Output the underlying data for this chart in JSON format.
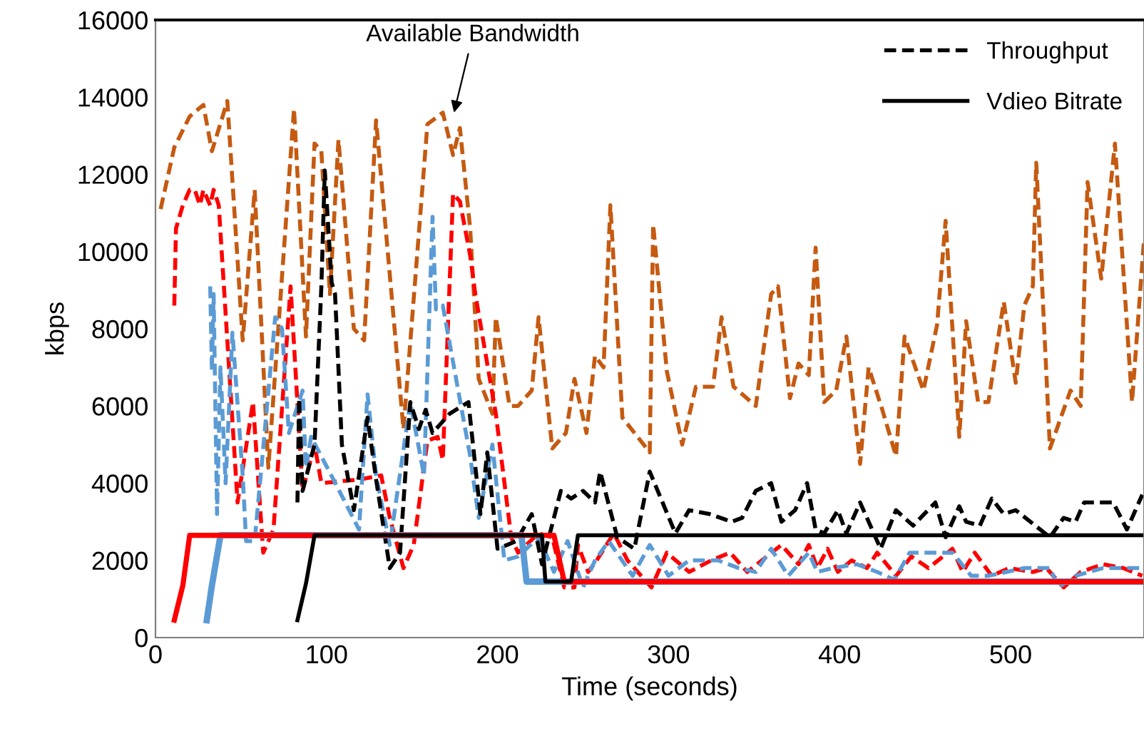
{
  "chart_data": {
    "type": "line",
    "xlabel": "Time (seconds)",
    "ylabel": "kbps",
    "xlim": [
      0,
      578
    ],
    "xticks": [
      0,
      100,
      200,
      300,
      400,
      500
    ],
    "ylim": [
      0,
      16000
    ],
    "yticks": [
      0,
      2000,
      4000,
      6000,
      8000,
      10000,
      12000,
      14000,
      16000
    ],
    "grid": false,
    "legend": "top right",
    "marker": "none",
    "annotations": [
      {
        "text": "Available Bandwidth",
        "x": 174,
        "y": 13500
      }
    ],
    "series": [
      {
        "color": "#c55a11",
        "line_style": "dashed",
        "x": [
          3,
          11,
          20,
          28,
          33,
          42,
          51,
          58,
          66,
          81,
          88,
          93,
          97,
          102,
          107,
          116,
          122,
          129,
          145,
          159,
          168,
          174,
          178,
          184,
          189,
          197,
          199,
          207,
          212,
          220,
          224,
          232,
          240,
          245,
          252,
          257,
          262,
          266,
          273,
          289,
          291,
          299,
          308,
          316,
          326,
          331,
          338,
          351,
          360,
          364,
          371,
          376,
          382,
          386,
          391,
          398,
          404,
          412,
          417,
          425,
          433,
          438,
          449,
          457,
          462,
          470,
          474,
          481,
          487,
          496,
          503,
          508,
          513,
          515,
          523,
          535,
          541,
          545,
          553,
          561,
          571,
          578
        ],
        "values": [
          11100,
          12700,
          13500,
          13800,
          12600,
          13900,
          7700,
          11600,
          4400,
          13700,
          7800,
          12800,
          12600,
          8900,
          12900,
          8000,
          7700,
          13400,
          5400,
          13300,
          13600,
          12500,
          13200,
          10600,
          6700,
          5800,
          8300,
          6000,
          6000,
          6400,
          8300,
          4900,
          5300,
          6700,
          5300,
          7300,
          7000,
          11200,
          5700,
          4800,
          10700,
          6900,
          5000,
          6500,
          6500,
          8300,
          6500,
          6000,
          8900,
          9100,
          6200,
          7100,
          6800,
          10100,
          6100,
          6400,
          7800,
          4500,
          7000,
          5900,
          4700,
          7800,
          6400,
          8100,
          10800,
          5200,
          8200,
          6100,
          6100,
          8700,
          6600,
          8600,
          9100,
          12300,
          4900,
          6400,
          6000,
          11800,
          9300,
          12800,
          6100,
          10300
        ]
      },
      {
        "color": "#ff0000",
        "line_style": "dashed",
        "x": [
          11,
          12,
          16,
          20,
          23,
          26,
          28,
          32,
          34,
          37,
          48,
          57,
          63,
          69,
          79,
          86,
          93,
          97,
          120,
          132,
          137,
          145,
          151,
          159,
          165,
          168,
          174,
          178,
          184,
          187,
          199,
          208,
          212,
          224,
          232,
          239,
          245,
          247,
          253,
          258,
          268,
          276,
          290,
          299,
          312,
          325,
          336,
          346,
          366,
          376,
          382,
          387,
          393,
          399,
          407,
          416,
          422,
          433,
          442,
          452,
          466,
          472,
          479,
          489,
          499,
          513,
          521,
          531,
          541,
          554,
          566,
          577
        ],
        "values": [
          8600,
          10600,
          11200,
          11600,
          11600,
          11200,
          11600,
          11200,
          11600,
          11200,
          3500,
          6100,
          2200,
          2800,
          9100,
          3800,
          5000,
          4000,
          4100,
          4200,
          3100,
          1800,
          2400,
          5100,
          5200,
          4600,
          11500,
          11300,
          9900,
          8900,
          5800,
          2600,
          2200,
          2700,
          2600,
          1300,
          1300,
          2400,
          1700,
          2000,
          2700,
          2000,
          1300,
          2200,
          1700,
          2000,
          2200,
          1700,
          2400,
          1900,
          2400,
          1800,
          2300,
          1700,
          2000,
          1800,
          2200,
          1600,
          2100,
          1800,
          2300,
          1700,
          2200,
          1600,
          1800,
          1700,
          1800,
          1300,
          1700,
          1900,
          1800,
          1600
        ]
      },
      {
        "color": "#5b9bd5",
        "line_style": "dashed",
        "x": [
          32,
          33,
          34,
          36,
          38,
          41,
          45,
          51,
          53,
          58,
          70,
          74,
          78,
          86,
          88,
          91,
          104,
          119,
          124,
          129,
          137,
          149,
          157,
          162,
          164,
          168,
          184,
          189,
          197,
          204,
          212,
          224,
          233,
          241,
          250,
          257,
          265,
          279,
          289,
          300,
          312,
          329,
          341,
          351,
          360,
          370,
          382,
          387,
          396,
          410,
          422,
          432,
          441,
          454,
          466,
          477,
          487,
          508,
          523,
          528,
          538,
          554,
          577
        ],
        "values": [
          9100,
          6900,
          8900,
          3200,
          7000,
          4000,
          7900,
          4200,
          2500,
          2500,
          8300,
          8000,
          5300,
          6400,
          4400,
          5200,
          4100,
          2800,
          6300,
          4200,
          2400,
          6100,
          4200,
          10900,
          8500,
          8600,
          4700,
          3100,
          5000,
          2000,
          2100,
          2600,
          1700,
          2500,
          1300,
          2000,
          2500,
          1600,
          2400,
          1600,
          2000,
          2000,
          1800,
          1700,
          2300,
          1600,
          2200,
          1700,
          1800,
          1900,
          1700,
          1500,
          2200,
          2200,
          2200,
          1600,
          1600,
          1800,
          1800,
          1300,
          1600,
          1800,
          1800
        ]
      },
      {
        "name": "Throughput",
        "color": "#000000",
        "line_style": "dashed",
        "x": [
          83,
          84,
          86,
          93,
          97,
          99,
          103,
          105,
          109,
          116,
          124,
          129,
          137,
          143,
          149,
          154,
          158,
          162,
          172,
          183,
          190,
          194,
          200,
          211,
          220,
          226,
          237,
          243,
          250,
          257,
          260,
          270,
          280,
          289,
          304,
          312,
          324,
          337,
          343,
          351,
          360,
          366,
          374,
          381,
          386,
          391,
          399,
          404,
          412,
          424,
          433,
          443,
          456,
          462,
          470,
          474,
          482,
          489,
          496,
          503,
          523,
          531,
          538,
          543,
          560,
          568,
          577
        ],
        "values": [
          3500,
          6200,
          3800,
          5000,
          9100,
          12100,
          9200,
          8900,
          5000,
          3300,
          5700,
          4100,
          1800,
          2200,
          6100,
          5400,
          5900,
          5300,
          5800,
          6100,
          3200,
          4800,
          2300,
          2500,
          3200,
          1900,
          3800,
          3600,
          3800,
          3500,
          4300,
          2600,
          2300,
          4300,
          2700,
          3300,
          3200,
          3000,
          3100,
          3800,
          4000,
          3000,
          3300,
          4000,
          2800,
          2700,
          3300,
          2700,
          3500,
          2300,
          3300,
          2900,
          3500,
          2600,
          3400,
          3000,
          2900,
          3600,
          3200,
          3300,
          2600,
          3100,
          3000,
          3500,
          3500,
          2800,
          3700
        ]
      },
      {
        "color": "#5b9bd5",
        "line_style": "solid",
        "x": [
          30,
          33,
          38,
          214,
          217,
          578
        ],
        "values": [
          450,
          1350,
          2650,
          2650,
          1450,
          1450
        ]
      },
      {
        "color": "#ff0000",
        "line_style": "solid",
        "x": [
          11,
          16,
          20,
          233,
          239,
          578
        ],
        "values": [
          450,
          1350,
          2650,
          2650,
          1450,
          1450
        ]
      },
      {
        "name": "Vdieo Bitrate",
        "color": "#000000",
        "line_style": "solid",
        "x": [
          83,
          88,
          93,
          226,
          228,
          243,
          247,
          578
        ],
        "values": [
          450,
          1400,
          2650,
          2650,
          1450,
          1450,
          2650,
          2650
        ]
      }
    ]
  }
}
